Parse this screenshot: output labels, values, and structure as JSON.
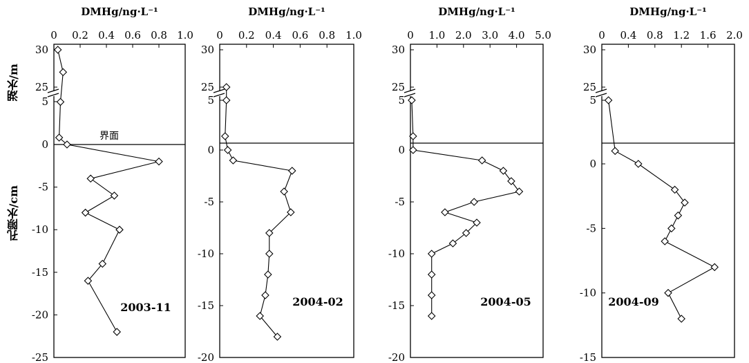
{
  "figure": {
    "lake_label": "湖水/m",
    "pore_label": "孔隙水/cm",
    "interface_label": "界面"
  },
  "chart_data": [
    {
      "type": "line",
      "xlabel": "DMHg/ng·L⁻¹",
      "annotation": "2003-11",
      "xlim": [
        0,
        1.0
      ],
      "x_ticks": [
        "0",
        "0.2",
        "0.4",
        "0.6",
        "0.8",
        "1.0"
      ],
      "lake_ticks": [
        "30",
        "25",
        "5"
      ],
      "pore_ticks": [
        "0",
        "-5",
        "-10",
        "-15",
        "-20",
        "-25"
      ],
      "lake_points": [
        {
          "x": 0.03,
          "y": 30
        },
        {
          "x": 0.07,
          "y": 27
        },
        {
          "x": 0.05,
          "y": 3
        }
      ],
      "interface_point": {
        "x": 0.04
      },
      "pore_points": [
        {
          "x": 0.1,
          "y": 0
        },
        {
          "x": 0.8,
          "y": -2
        },
        {
          "x": 0.28,
          "y": -4
        },
        {
          "x": 0.46,
          "y": -6
        },
        {
          "x": 0.24,
          "y": -8
        },
        {
          "x": 0.5,
          "y": -10
        },
        {
          "x": 0.37,
          "y": -14
        },
        {
          "x": 0.26,
          "y": -16
        },
        {
          "x": 0.48,
          "y": -22
        }
      ]
    },
    {
      "type": "line",
      "xlabel": "DMHg/ng·L⁻¹",
      "annotation": "2004-02",
      "xlim": [
        0,
        1.0
      ],
      "x_ticks": [
        "0",
        "0.2",
        "0.4",
        "0.6",
        "0.8",
        "1.0"
      ],
      "lake_ticks": [
        "30",
        "25",
        "5"
      ],
      "pore_ticks": [
        "0",
        "-5",
        "-10",
        "-15",
        "-20"
      ],
      "lake_points": [
        {
          "x": 0.05,
          "y": 25
        },
        {
          "x": 0.05,
          "y": 5
        }
      ],
      "interface_point": {
        "x": 0.04
      },
      "pore_points": [
        {
          "x": 0.06,
          "y": 0
        },
        {
          "x": 0.1,
          "y": -1
        },
        {
          "x": 0.54,
          "y": -2
        },
        {
          "x": 0.48,
          "y": -4
        },
        {
          "x": 0.53,
          "y": -6
        },
        {
          "x": 0.37,
          "y": -8
        },
        {
          "x": 0.37,
          "y": -10
        },
        {
          "x": 0.36,
          "y": -12
        },
        {
          "x": 0.34,
          "y": -14
        },
        {
          "x": 0.3,
          "y": -16
        },
        {
          "x": 0.43,
          "y": -18
        }
      ]
    },
    {
      "type": "line",
      "xlabel": "DMHg/ng·L⁻¹",
      "annotation": "2004-05",
      "xlim": [
        0,
        5.0
      ],
      "x_ticks": [
        "0",
        "1.0",
        "2.0",
        "3.0",
        "4.0",
        "5.0"
      ],
      "lake_ticks": [
        "30",
        "25",
        "5"
      ],
      "pore_ticks": [
        "0",
        "-5",
        "-10",
        "-15",
        "-20"
      ],
      "lake_points": [
        {
          "x": 0.05,
          "y": 5
        }
      ],
      "interface_point": {
        "x": 0.1
      },
      "pore_points": [
        {
          "x": 0.1,
          "y": 0
        },
        {
          "x": 2.7,
          "y": -1
        },
        {
          "x": 3.5,
          "y": -2
        },
        {
          "x": 3.8,
          "y": -3
        },
        {
          "x": 4.1,
          "y": -4
        },
        {
          "x": 2.4,
          "y": -5
        },
        {
          "x": 1.3,
          "y": -6
        },
        {
          "x": 2.5,
          "y": -7
        },
        {
          "x": 2.1,
          "y": -8
        },
        {
          "x": 1.6,
          "y": -9
        },
        {
          "x": 0.8,
          "y": -10
        },
        {
          "x": 0.8,
          "y": -12
        },
        {
          "x": 0.8,
          "y": -14
        },
        {
          "x": 0.8,
          "y": -16
        }
      ]
    },
    {
      "type": "line",
      "xlabel": "DMHg/ng·L⁻¹",
      "annotation": "2004-09",
      "xlim": [
        0,
        2.0
      ],
      "x_ticks": [
        "0",
        "0.4",
        "0.8",
        "1.2",
        "1.6",
        "2.0"
      ],
      "lake_ticks": [
        "30",
        "25",
        "5"
      ],
      "pore_ticks": [
        "0",
        "-5",
        "-10",
        "-15"
      ],
      "lake_points": [
        {
          "x": 0.1,
          "y": 5
        }
      ],
      "interface_point": null,
      "pore_points": [
        {
          "x": 0.2,
          "y": 1
        },
        {
          "x": 0.55,
          "y": 0
        },
        {
          "x": 1.1,
          "y": -2
        },
        {
          "x": 1.25,
          "y": -3
        },
        {
          "x": 1.15,
          "y": -4
        },
        {
          "x": 1.05,
          "y": -5
        },
        {
          "x": 0.95,
          "y": -6
        },
        {
          "x": 1.7,
          "y": -8
        },
        {
          "x": 1.0,
          "y": -10
        },
        {
          "x": 1.2,
          "y": -12
        }
      ]
    }
  ]
}
